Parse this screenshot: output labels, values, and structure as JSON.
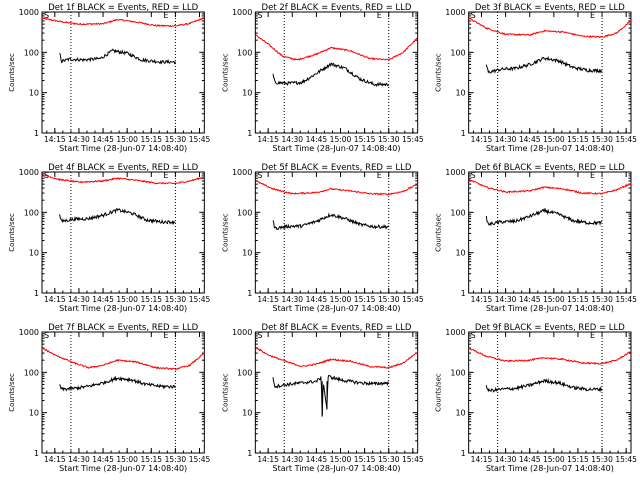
{
  "colors": {
    "events": "#000000",
    "lld": "#ff0000",
    "axis": "#000000"
  },
  "xtick_labels": [
    "14:15",
    "14:30",
    "14:45",
    "15:00",
    "15:15",
    "15:30",
    "15:45"
  ],
  "ytick_labels": [
    "1",
    "10",
    "100",
    "1000"
  ],
  "start_markers": [
    "S",
    "E"
  ],
  "chart_data": [
    {
      "type": "line",
      "title": "Det 1f BLACK = Events, RED = LLD",
      "xlabel": "Start Time (28-Jun-07 14:08:40)",
      "ylabel": "Counts/sec",
      "xlim": [
        14.117,
        15.8
      ],
      "ylim": [
        1,
        1000
      ],
      "yscale": "log",
      "vlines": [
        14.417,
        15.5
      ],
      "series": [
        {
          "values": [
            {
              "t": 14.12,
              "v": 700
            },
            {
              "t": 14.3,
              "v": 580
            },
            {
              "t": 14.5,
              "v": 500
            },
            {
              "t": 14.75,
              "v": 510
            },
            {
              "t": 14.9,
              "v": 650
            },
            {
              "t": 15.1,
              "v": 560
            },
            {
              "t": 15.3,
              "v": 460
            },
            {
              "t": 15.5,
              "v": 450
            },
            {
              "t": 15.65,
              "v": 520
            },
            {
              "t": 15.8,
              "v": 720
            }
          ]
        },
        {
          "values": [
            {
              "t": 14.3,
              "v": 95
            },
            {
              "t": 14.32,
              "v": 60
            },
            {
              "t": 14.4,
              "v": 68
            },
            {
              "t": 14.55,
              "v": 65
            },
            {
              "t": 14.72,
              "v": 70
            },
            {
              "t": 14.85,
              "v": 110
            },
            {
              "t": 15.0,
              "v": 95
            },
            {
              "t": 15.15,
              "v": 65
            },
            {
              "t": 15.35,
              "v": 58
            },
            {
              "t": 15.5,
              "v": 58
            }
          ]
        }
      ]
    },
    {
      "type": "line",
      "title": "Det 2f BLACK = Events, RED = LLD",
      "xlabel": "Start Time (28-Jun-07 14:08:40)",
      "ylabel": "Counts/sec",
      "xlim": [
        14.117,
        15.8
      ],
      "ylim": [
        1,
        1000
      ],
      "yscale": "log",
      "vlines": [
        14.417,
        15.5
      ],
      "series": [
        {
          "values": [
            {
              "t": 14.12,
              "v": 270
            },
            {
              "t": 14.25,
              "v": 160
            },
            {
              "t": 14.4,
              "v": 80
            },
            {
              "t": 14.55,
              "v": 65
            },
            {
              "t": 14.75,
              "v": 90
            },
            {
              "t": 14.9,
              "v": 130
            },
            {
              "t": 15.1,
              "v": 110
            },
            {
              "t": 15.3,
              "v": 70
            },
            {
              "t": 15.5,
              "v": 65
            },
            {
              "t": 15.65,
              "v": 100
            },
            {
              "t": 15.8,
              "v": 230
            }
          ]
        },
        {
          "values": [
            {
              "t": 14.3,
              "v": 28
            },
            {
              "t": 14.32,
              "v": 18
            },
            {
              "t": 14.45,
              "v": 17
            },
            {
              "t": 14.6,
              "v": 18
            },
            {
              "t": 14.75,
              "v": 30
            },
            {
              "t": 14.9,
              "v": 52
            },
            {
              "t": 15.05,
              "v": 40
            },
            {
              "t": 15.2,
              "v": 22
            },
            {
              "t": 15.35,
              "v": 16
            },
            {
              "t": 15.5,
              "v": 16
            }
          ]
        }
      ]
    },
    {
      "type": "line",
      "title": "Det 3f BLACK = Events, RED = LLD",
      "xlabel": "Start Time (28-Jun-07 14:08:40)",
      "ylabel": "Counts/sec",
      "xlim": [
        14.117,
        15.8
      ],
      "ylim": [
        1,
        1000
      ],
      "yscale": "log",
      "vlines": [
        14.417,
        15.5
      ],
      "series": [
        {
          "values": [
            {
              "t": 14.12,
              "v": 700
            },
            {
              "t": 14.3,
              "v": 400
            },
            {
              "t": 14.5,
              "v": 280
            },
            {
              "t": 14.75,
              "v": 270
            },
            {
              "t": 14.9,
              "v": 340
            },
            {
              "t": 15.1,
              "v": 320
            },
            {
              "t": 15.3,
              "v": 250
            },
            {
              "t": 15.5,
              "v": 240
            },
            {
              "t": 15.65,
              "v": 300
            },
            {
              "t": 15.8,
              "v": 600
            }
          ]
        },
        {
          "values": [
            {
              "t": 14.3,
              "v": 50
            },
            {
              "t": 14.32,
              "v": 32
            },
            {
              "t": 14.45,
              "v": 38
            },
            {
              "t": 14.6,
              "v": 40
            },
            {
              "t": 14.75,
              "v": 50
            },
            {
              "t": 14.9,
              "v": 72
            },
            {
              "t": 15.05,
              "v": 62
            },
            {
              "t": 15.2,
              "v": 42
            },
            {
              "t": 15.35,
              "v": 36
            },
            {
              "t": 15.5,
              "v": 35
            }
          ]
        }
      ]
    },
    {
      "type": "line",
      "title": "Det 4f BLACK = Events, RED = LLD",
      "xlabel": "Start Time (28-Jun-07 14:08:40)",
      "ylabel": "Counts/sec",
      "xlim": [
        14.117,
        15.8
      ],
      "ylim": [
        1,
        1000
      ],
      "yscale": "log",
      "vlines": [
        14.417,
        15.5
      ],
      "series": [
        {
          "values": [
            {
              "t": 14.12,
              "v": 850
            },
            {
              "t": 14.3,
              "v": 650
            },
            {
              "t": 14.5,
              "v": 560
            },
            {
              "t": 14.75,
              "v": 600
            },
            {
              "t": 14.9,
              "v": 700
            },
            {
              "t": 15.1,
              "v": 620
            },
            {
              "t": 15.3,
              "v": 530
            },
            {
              "t": 15.5,
              "v": 520
            },
            {
              "t": 15.65,
              "v": 600
            },
            {
              "t": 15.8,
              "v": 750
            }
          ]
        },
        {
          "values": [
            {
              "t": 14.3,
              "v": 85
            },
            {
              "t": 14.32,
              "v": 60
            },
            {
              "t": 14.45,
              "v": 68
            },
            {
              "t": 14.6,
              "v": 70
            },
            {
              "t": 14.75,
              "v": 85
            },
            {
              "t": 14.9,
              "v": 115
            },
            {
              "t": 15.05,
              "v": 95
            },
            {
              "t": 15.2,
              "v": 65
            },
            {
              "t": 15.35,
              "v": 58
            },
            {
              "t": 15.5,
              "v": 58
            }
          ]
        }
      ]
    },
    {
      "type": "line",
      "title": "Det 5f BLACK = Events, RED = LLD",
      "xlabel": "Start Time (28-Jun-07 14:08:40)",
      "ylabel": "Counts/sec",
      "xlim": [
        14.117,
        15.8
      ],
      "ylim": [
        1,
        1000
      ],
      "yscale": "log",
      "vlines": [
        14.417,
        15.5
      ],
      "series": [
        {
          "values": [
            {
              "t": 14.12,
              "v": 600
            },
            {
              "t": 14.3,
              "v": 380
            },
            {
              "t": 14.5,
              "v": 290
            },
            {
              "t": 14.75,
              "v": 310
            },
            {
              "t": 14.9,
              "v": 380
            },
            {
              "t": 15.1,
              "v": 340
            },
            {
              "t": 15.3,
              "v": 290
            },
            {
              "t": 15.5,
              "v": 280
            },
            {
              "t": 15.65,
              "v": 330
            },
            {
              "t": 15.8,
              "v": 500
            }
          ]
        },
        {
          "values": [
            {
              "t": 14.3,
              "v": 62
            },
            {
              "t": 14.32,
              "v": 40
            },
            {
              "t": 14.45,
              "v": 45
            },
            {
              "t": 14.6,
              "v": 46
            },
            {
              "t": 14.75,
              "v": 60
            },
            {
              "t": 14.9,
              "v": 88
            },
            {
              "t": 15.05,
              "v": 70
            },
            {
              "t": 15.2,
              "v": 50
            },
            {
              "t": 15.35,
              "v": 44
            },
            {
              "t": 15.5,
              "v": 44
            }
          ]
        }
      ]
    },
    {
      "type": "line",
      "title": "Det 6f BLACK = Events, RED = LLD",
      "xlabel": "Start Time (28-Jun-07 14:08:40)",
      "ylabel": "Counts/sec",
      "xlim": [
        14.117,
        15.8
      ],
      "ylim": [
        1,
        1000
      ],
      "yscale": "log",
      "vlines": [
        14.417,
        15.5
      ],
      "series": [
        {
          "values": [
            {
              "t": 14.12,
              "v": 650
            },
            {
              "t": 14.3,
              "v": 420
            },
            {
              "t": 14.5,
              "v": 320
            },
            {
              "t": 14.75,
              "v": 340
            },
            {
              "t": 14.9,
              "v": 420
            },
            {
              "t": 15.1,
              "v": 380
            },
            {
              "t": 15.3,
              "v": 300
            },
            {
              "t": 15.5,
              "v": 290
            },
            {
              "t": 15.65,
              "v": 360
            },
            {
              "t": 15.8,
              "v": 520
            }
          ]
        },
        {
          "values": [
            {
              "t": 14.3,
              "v": 75
            },
            {
              "t": 14.32,
              "v": 50
            },
            {
              "t": 14.45,
              "v": 58
            },
            {
              "t": 14.6,
              "v": 60
            },
            {
              "t": 14.75,
              "v": 80
            },
            {
              "t": 14.9,
              "v": 110
            },
            {
              "t": 15.05,
              "v": 90
            },
            {
              "t": 15.2,
              "v": 62
            },
            {
              "t": 15.35,
              "v": 55
            },
            {
              "t": 15.5,
              "v": 55
            }
          ]
        }
      ]
    },
    {
      "type": "line",
      "title": "Det 7f BLACK = Events, RED = LLD",
      "xlabel": "Start Time (28-Jun-07 14:08:40)",
      "ylabel": "Counts/sec",
      "xlim": [
        14.117,
        15.8
      ],
      "ylim": [
        1,
        1000
      ],
      "yscale": "log",
      "vlines": [
        14.417,
        15.5
      ],
      "series": [
        {
          "values": [
            {
              "t": 14.12,
              "v": 400
            },
            {
              "t": 14.25,
              "v": 270
            },
            {
              "t": 14.45,
              "v": 170
            },
            {
              "t": 14.6,
              "v": 130
            },
            {
              "t": 14.75,
              "v": 150
            },
            {
              "t": 14.9,
              "v": 200
            },
            {
              "t": 15.1,
              "v": 180
            },
            {
              "t": 15.3,
              "v": 130
            },
            {
              "t": 15.5,
              "v": 120
            },
            {
              "t": 15.65,
              "v": 150
            },
            {
              "t": 15.8,
              "v": 300
            }
          ]
        },
        {
          "values": [
            {
              "t": 14.3,
              "v": 50
            },
            {
              "t": 14.32,
              "v": 38
            },
            {
              "t": 14.45,
              "v": 40
            },
            {
              "t": 14.6,
              "v": 45
            },
            {
              "t": 14.75,
              "v": 55
            },
            {
              "t": 14.9,
              "v": 72
            },
            {
              "t": 15.05,
              "v": 65
            },
            {
              "t": 15.2,
              "v": 50
            },
            {
              "t": 15.35,
              "v": 45
            },
            {
              "t": 15.5,
              "v": 44
            }
          ]
        }
      ]
    },
    {
      "type": "line",
      "title": "Det 8f BLACK = Events, RED = LLD",
      "xlabel": "Start Time (28-Jun-07 14:08:40)",
      "ylabel": "Counts/sec",
      "xlim": [
        14.117,
        15.8
      ],
      "ylim": [
        1,
        1000
      ],
      "yscale": "log",
      "vlines": [
        14.417,
        15.5
      ],
      "series": [
        {
          "values": [
            {
              "t": 14.12,
              "v": 420
            },
            {
              "t": 14.25,
              "v": 270
            },
            {
              "t": 14.45,
              "v": 180
            },
            {
              "t": 14.6,
              "v": 140
            },
            {
              "t": 14.75,
              "v": 160
            },
            {
              "t": 14.9,
              "v": 210
            },
            {
              "t": 15.1,
              "v": 190
            },
            {
              "t": 15.3,
              "v": 140
            },
            {
              "t": 15.5,
              "v": 130
            },
            {
              "t": 15.65,
              "v": 170
            },
            {
              "t": 15.8,
              "v": 320
            }
          ]
        },
        {
          "values": [
            {
              "t": 14.3,
              "v": 75
            },
            {
              "t": 14.32,
              "v": 45
            },
            {
              "t": 14.45,
              "v": 50
            },
            {
              "t": 14.6,
              "v": 55
            },
            {
              "t": 14.75,
              "v": 60
            },
            {
              "t": 14.8,
              "v": 75
            },
            {
              "t": 14.81,
              "v": 8
            },
            {
              "t": 14.82,
              "v": 60
            },
            {
              "t": 14.86,
              "v": 12
            },
            {
              "t": 14.87,
              "v": 80
            },
            {
              "t": 15.0,
              "v": 65
            },
            {
              "t": 15.2,
              "v": 55
            },
            {
              "t": 15.35,
              "v": 52
            },
            {
              "t": 15.5,
              "v": 55
            }
          ]
        }
      ]
    },
    {
      "type": "line",
      "title": "Det 9f BLACK = Events, RED = LLD",
      "xlabel": "Start Time (28-Jun-07 14:08:40)",
      "ylabel": "Counts/sec",
      "xlim": [
        14.117,
        15.8
      ],
      "ylim": [
        1,
        1000
      ],
      "yscale": "log",
      "vlines": [
        14.417,
        15.5
      ],
      "series": [
        {
          "values": [
            {
              "t": 14.12,
              "v": 400
            },
            {
              "t": 14.3,
              "v": 250
            },
            {
              "t": 14.5,
              "v": 190
            },
            {
              "t": 14.75,
              "v": 200
            },
            {
              "t": 14.9,
              "v": 230
            },
            {
              "t": 15.1,
              "v": 210
            },
            {
              "t": 15.3,
              "v": 170
            },
            {
              "t": 15.5,
              "v": 165
            },
            {
              "t": 15.65,
              "v": 200
            },
            {
              "t": 15.8,
              "v": 330
            }
          ]
        },
        {
          "values": [
            {
              "t": 14.3,
              "v": 48
            },
            {
              "t": 14.32,
              "v": 35
            },
            {
              "t": 14.45,
              "v": 38
            },
            {
              "t": 14.6,
              "v": 40
            },
            {
              "t": 14.75,
              "v": 48
            },
            {
              "t": 14.9,
              "v": 62
            },
            {
              "t": 15.05,
              "v": 55
            },
            {
              "t": 15.2,
              "v": 42
            },
            {
              "t": 15.35,
              "v": 38
            },
            {
              "t": 15.5,
              "v": 38
            }
          ]
        }
      ]
    }
  ]
}
